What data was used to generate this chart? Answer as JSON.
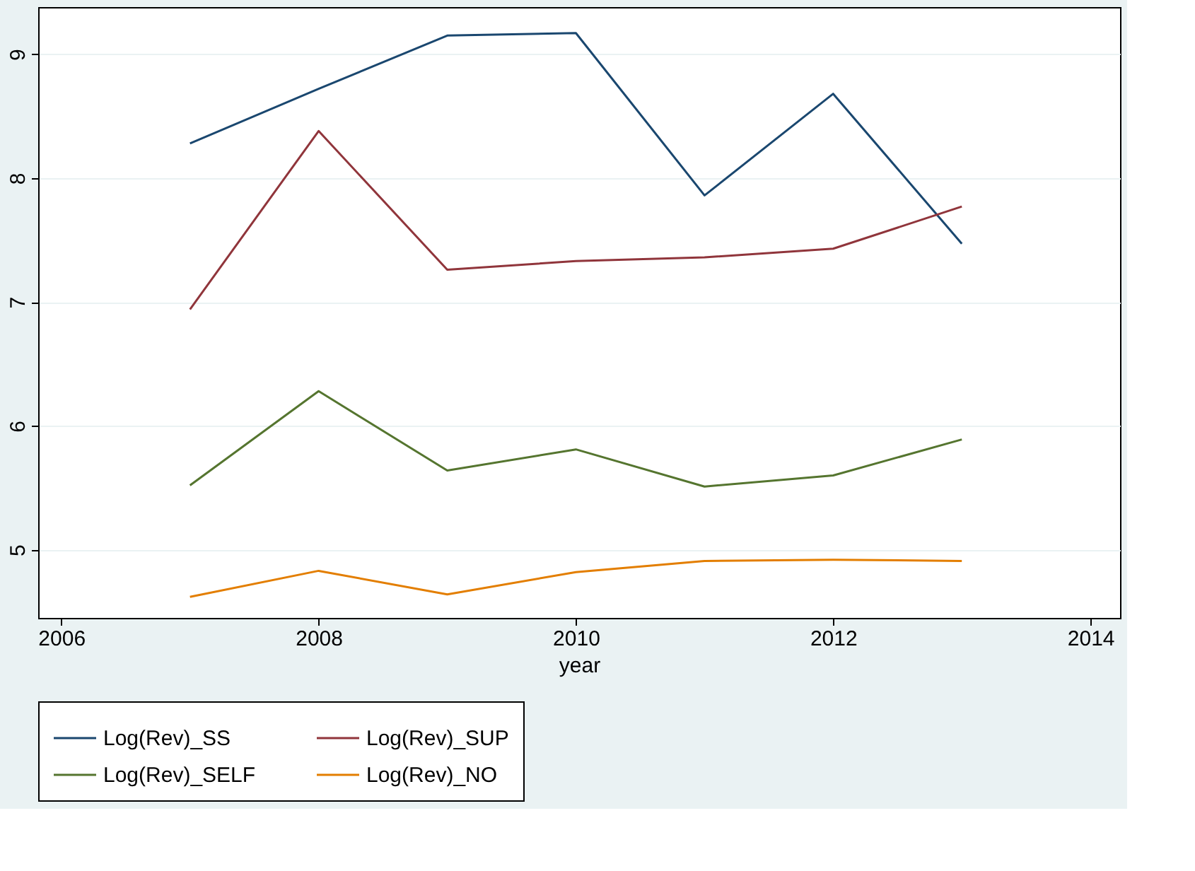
{
  "chart_data": {
    "type": "line",
    "xlabel": "year",
    "x": [
      2007,
      2008,
      2009,
      2010,
      2011,
      2012,
      2013
    ],
    "series": [
      {
        "name": "Log(Rev)_SS",
        "color": "#1a476f",
        "values": [
          8.28,
          8.72,
          9.15,
          9.17,
          7.86,
          8.68,
          7.47
        ]
      },
      {
        "name": "Log(Rev)_SUP",
        "color": "#90353b",
        "values": [
          6.94,
          8.38,
          7.26,
          7.33,
          7.36,
          7.43,
          7.77
        ]
      },
      {
        "name": "Log(Rev)_SELF",
        "color": "#55752f",
        "values": [
          5.52,
          6.28,
          5.64,
          5.81,
          5.51,
          5.6,
          5.89
        ]
      },
      {
        "name": "Log(Rev)_NO",
        "color": "#e37e00",
        "values": [
          4.62,
          4.83,
          4.64,
          4.82,
          4.91,
          4.92,
          4.91
        ]
      }
    ],
    "xlim": [
      2005.82,
      2014.23
    ],
    "xticks": [
      2006,
      2008,
      2010,
      2012,
      2014
    ],
    "ylim": [
      4.45,
      9.38
    ],
    "yticks": [
      5,
      6,
      7,
      8,
      9
    ],
    "grid": "y",
    "legend": "bottom",
    "marker": "none",
    "line_style": "solid"
  }
}
